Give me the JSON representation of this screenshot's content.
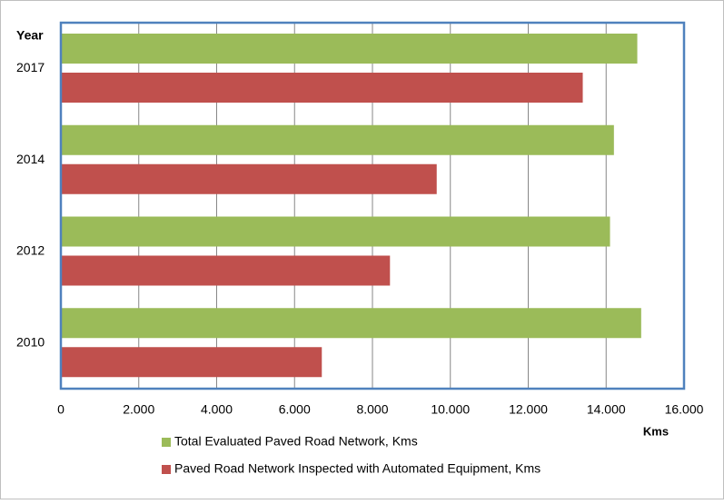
{
  "chart_data": {
    "type": "hbar",
    "y_axis_title": "Year",
    "x_axis_title": "Kms",
    "categories": [
      "2017",
      "2014",
      "2012",
      "2010"
    ],
    "series": [
      {
        "name": "Total Evaluated Paved Road Network, Kms",
        "color": "#9bbb59",
        "values": [
          14800,
          14200,
          14100,
          14900
        ]
      },
      {
        "name": "Paved Road Network Inspected with Automated Equipment, Kms",
        "color": "#c0504d",
        "values": [
          13400,
          9650,
          8450,
          6700
        ]
      }
    ],
    "xlim": [
      0,
      16000
    ],
    "xticks": [
      0,
      {
        "value": 2000,
        "label": "2.000"
      },
      {
        "value": 4000,
        "label": "4.000"
      },
      {
        "value": 6000,
        "label": "6.000"
      },
      {
        "value": 8000,
        "label": "8.000"
      },
      {
        "value": 10000,
        "label": "10.000"
      },
      {
        "value": 12000,
        "label": "12.000"
      },
      {
        "value": 14000,
        "label": "14.000"
      },
      {
        "value": 16000,
        "label": "16.000"
      }
    ],
    "grid": true,
    "legend": "bottom"
  }
}
